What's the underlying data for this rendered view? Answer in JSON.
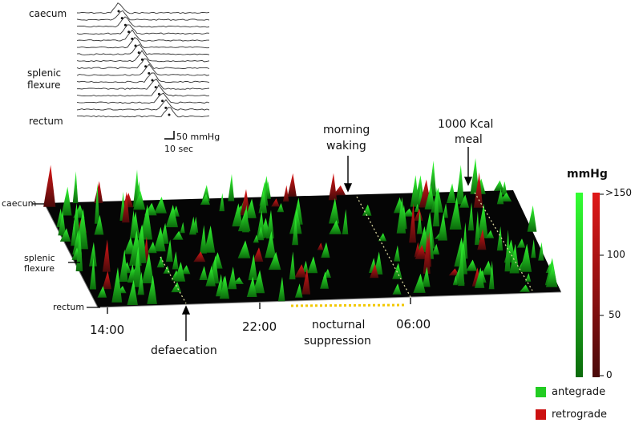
{
  "inset": {
    "labels": {
      "caecum": "caecum",
      "splenic": "splenic",
      "flexure": "flexure",
      "rectum": "rectum"
    },
    "scale": {
      "pressure": "50 mmHg",
      "time": "10 sec"
    }
  },
  "main": {
    "axis": {
      "caecum": "caecum",
      "splenic": "splenic",
      "flexure": "flexure",
      "rectum": "rectum"
    },
    "times": [
      "14:00",
      "22:00",
      "06:00"
    ],
    "annotations": {
      "morning_1": "morning",
      "morning_2": "waking",
      "meal_1": "1000 Kcal",
      "meal_2": "meal",
      "defaecation": "defaecation",
      "nocturnal_1": "nocturnal",
      "nocturnal_2": "suppression"
    }
  },
  "colorbar": {
    "title": "mmHg",
    "ticks": [
      ">150",
      "100",
      "50",
      "0"
    ],
    "colors": {
      "antegrade": "#22cc22",
      "retrograde": "#cc1111"
    }
  },
  "legend": {
    "items": [
      {
        "label": "antegrade",
        "color": "#22cc22"
      },
      {
        "label": "retrograde",
        "color": "#cc1111"
      }
    ]
  }
}
